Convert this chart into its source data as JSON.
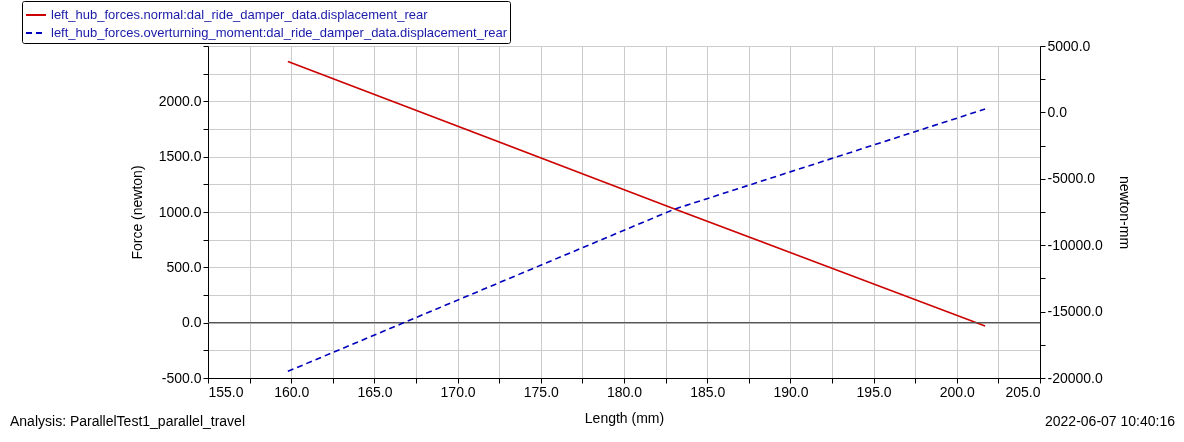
{
  "chart_data": {
    "type": "line",
    "xlabel": "Length (mm)",
    "ylabel": "Force (newton)",
    "y2label": "newton-mm",
    "annotations": [
      "Analysis:  ParallelTest1_parallel_travel",
      "2022-06-07 10:40:16"
    ],
    "series": [
      {
        "name": "left_hub_forces.normal:dal_ride_damper_data.displacement_rear",
        "color": "#cc0000",
        "line_style": "solid",
        "x": [
          159.8,
          183.0,
          201.7
        ],
        "values": [
          2360,
          1030,
          -30
        ]
      },
      {
        "name": "left_hub_forces.overturning_moment:dal_ride_damper_data.displacement_rear",
        "color": "#0000bb",
        "line_style": "dashed",
        "axis": "y2",
        "x": [
          159.8,
          183.0,
          201.7
        ],
        "values": [
          -19500,
          -7300,
          250
        ]
      }
    ],
    "xlim": [
      155,
      205
    ],
    "xticks": [
      {
        "value": 155,
        "label": "155.0"
      },
      {
        "value": 157.5,
        "label": null
      },
      {
        "value": 160,
        "label": "160.0"
      },
      {
        "value": 162.5,
        "label": null
      },
      {
        "value": 165,
        "label": "165.0"
      },
      {
        "value": 167.5,
        "label": null
      },
      {
        "value": 170,
        "label": "170.0"
      },
      {
        "value": 172.5,
        "label": null
      },
      {
        "value": 175,
        "label": "175.0"
      },
      {
        "value": 177.5,
        "label": null
      },
      {
        "value": 180,
        "label": "180.0"
      },
      {
        "value": 182.5,
        "label": null
      },
      {
        "value": 185,
        "label": "185.0"
      },
      {
        "value": 187.5,
        "label": null
      },
      {
        "value": 190,
        "label": "190.0"
      },
      {
        "value": 192.5,
        "label": null
      },
      {
        "value": 195,
        "label": "195.0"
      },
      {
        "value": 197.5,
        "label": null
      },
      {
        "value": 200,
        "label": "200.0"
      },
      {
        "value": 202.5,
        "label": null
      },
      {
        "value": 205,
        "label": "205.0"
      }
    ],
    "ylim": [
      -500,
      2500
    ],
    "yticks": [
      {
        "value": -500,
        "label": "-500.0"
      },
      {
        "value": -250,
        "label": null
      },
      {
        "value": 0,
        "label": "0.0"
      },
      {
        "value": 250,
        "label": null
      },
      {
        "value": 500,
        "label": "500.0"
      },
      {
        "value": 750,
        "label": null
      },
      {
        "value": 1000,
        "label": "1000.0"
      },
      {
        "value": 1250,
        "label": null
      },
      {
        "value": 1500,
        "label": "1500.0"
      },
      {
        "value": 1750,
        "label": null
      },
      {
        "value": 2000,
        "label": "2000.0"
      },
      {
        "value": 2250,
        "label": null
      },
      {
        "value": 2500,
        "label": null
      }
    ],
    "y2lim": [
      -20000,
      5000
    ],
    "y2ticks": [
      {
        "value": -20000,
        "label": "-20000.0"
      },
      {
        "value": -17500,
        "label": null
      },
      {
        "value": -15000,
        "label": "-15000.0"
      },
      {
        "value": -12500,
        "label": null
      },
      {
        "value": -10000,
        "label": "-10000.0"
      },
      {
        "value": -7500,
        "label": null
      },
      {
        "value": -5000,
        "label": "-5000.0"
      },
      {
        "value": -2500,
        "label": null
      },
      {
        "value": 0,
        "label": "0.0"
      },
      {
        "value": 2500,
        "label": null
      },
      {
        "value": 5000,
        "label": "5000.0"
      }
    ],
    "ref_lines": [
      {
        "axis": "y",
        "value": 0,
        "color": "#555555"
      }
    ],
    "grid": true,
    "legend": "top left",
    "marker": "none"
  }
}
